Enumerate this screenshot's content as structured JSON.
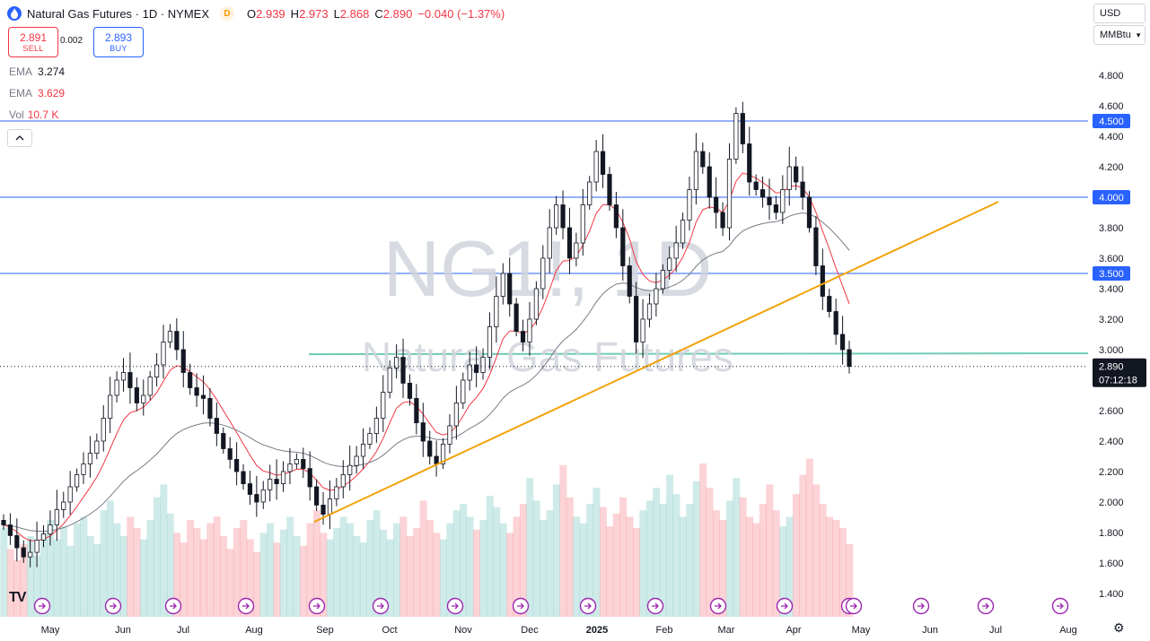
{
  "header": {
    "symbol_title": "Natural Gas Futures · 1D · NYMEX",
    "d_badge": "D",
    "open_key": "O",
    "open": "2.939",
    "high_key": "H",
    "high": "2.973",
    "low_key": "L",
    "low": "2.868",
    "close_key": "C",
    "close": "2.890",
    "change": "−0.040 (−1.37%)"
  },
  "trade": {
    "sell_price": "2.891",
    "sell_label": "SELL",
    "buy_price": "2.893",
    "buy_label": "BUY",
    "spread": "0.002"
  },
  "indicators": [
    {
      "name": "EMA",
      "value": "3.274",
      "color": "#787b86"
    },
    {
      "name": "EMA",
      "value": "3.629",
      "color": "#f23645"
    },
    {
      "name": "Vol",
      "value": "10.7 K",
      "color": "#f23645"
    }
  ],
  "currency_select": "USD",
  "unit_select": "MMBtu",
  "collapse_icon": "chevron-up-icon",
  "watermark": {
    "symbol": "NG1!, 1D",
    "name": "Natural Gas Futures"
  },
  "tv_logo": "TV",
  "chart_data": {
    "type": "candlestick",
    "y_ticks": [
      "4.800",
      "4.600",
      "4.400",
      "4.200",
      "4.000",
      "3.800",
      "3.600",
      "3.400",
      "3.200",
      "3.000",
      "2.800",
      "2.600",
      "2.400",
      "2.200",
      "2.000",
      "1.800",
      "1.600",
      "1.400"
    ],
    "ylim": [
      1.3,
      5.0
    ],
    "x_ticks": [
      "May",
      "Jun",
      "Jul",
      "Aug",
      "Sep",
      "Oct",
      "Nov",
      "Dec",
      "2025",
      "Feb",
      "Mar",
      "Apr",
      "May",
      "Jun",
      "Jul",
      "Aug"
    ],
    "horizontal_levels": [
      {
        "label": "4.500",
        "value": 4.5
      },
      {
        "label": "4.000",
        "value": 4.0
      },
      {
        "label": "3.500",
        "value": 3.5
      }
    ],
    "support_line_value": 2.97,
    "trend_line": {
      "from": [
        "Sep",
        1.87
      ],
      "to": [
        "Apr",
        3.97
      ]
    },
    "last_price_label": "2.890",
    "countdown": "07:12:18",
    "colors": {
      "up": "#26a69a",
      "down": "#f23645",
      "level": "#2962ff",
      "trend": "#f0a30a",
      "support": "#55c2a8",
      "ema_fast": "#f23645",
      "ema_slow": "#787b86",
      "candle": "#131722"
    },
    "closes": [
      1.85,
      1.78,
      1.7,
      1.64,
      1.67,
      1.75,
      1.79,
      1.85,
      1.95,
      2.0,
      2.1,
      2.18,
      2.25,
      2.32,
      2.4,
      2.55,
      2.7,
      2.8,
      2.85,
      2.75,
      2.65,
      2.7,
      2.82,
      2.9,
      3.05,
      3.12,
      3.0,
      2.85,
      2.75,
      2.7,
      2.68,
      2.55,
      2.45,
      2.35,
      2.28,
      2.2,
      2.12,
      2.05,
      2.0,
      2.08,
      2.15,
      2.12,
      2.2,
      2.25,
      2.28,
      2.22,
      2.1,
      1.98,
      1.92,
      2.02,
      2.1,
      2.18,
      2.24,
      2.3,
      2.38,
      2.45,
      2.55,
      2.72,
      2.88,
      2.95,
      2.78,
      2.68,
      2.52,
      2.4,
      2.3,
      2.25,
      2.38,
      2.5,
      2.65,
      2.8,
      2.9,
      2.85,
      2.95,
      3.15,
      3.35,
      3.5,
      3.3,
      3.12,
      3.05,
      3.2,
      3.4,
      3.6,
      3.8,
      3.95,
      3.8,
      3.6,
      3.7,
      3.95,
      4.1,
      4.3,
      4.15,
      3.95,
      3.8,
      3.55,
      3.35,
      3.05,
      3.2,
      3.3,
      3.4,
      3.52,
      3.6,
      3.7,
      3.85,
      4.05,
      4.3,
      4.2,
      4.0,
      3.9,
      3.8,
      4.25,
      4.55,
      4.35,
      4.1,
      4.05,
      4.0,
      3.95,
      3.9,
      4.05,
      4.2,
      4.1,
      4.0,
      3.8,
      3.55,
      3.35,
      3.25,
      3.1,
      3.0,
      2.89
    ],
    "volume": [
      0.55,
      0.42,
      0.35,
      0.45,
      0.5,
      0.38,
      0.52,
      0.6,
      0.48,
      0.56,
      0.44,
      0.58,
      0.62,
      0.5,
      0.45,
      0.66,
      0.72,
      0.58,
      0.5,
      0.62,
      0.55,
      0.48,
      0.6,
      0.74,
      0.82,
      0.64,
      0.52,
      0.46,
      0.6,
      0.55,
      0.48,
      0.58,
      0.62,
      0.5,
      0.42,
      0.55,
      0.6,
      0.48,
      0.4,
      0.52,
      0.58,
      0.46,
      0.54,
      0.62,
      0.5,
      0.44,
      0.58,
      0.66,
      0.52,
      0.48,
      0.55,
      0.62,
      0.58,
      0.5,
      0.46,
      0.6,
      0.66,
      0.54,
      0.48,
      0.58,
      0.62,
      0.5,
      0.55,
      0.72,
      0.6,
      0.52,
      0.48,
      0.58,
      0.66,
      0.7,
      0.62,
      0.54,
      0.6,
      0.75,
      0.68,
      0.58,
      0.52,
      0.62,
      0.7,
      0.86,
      0.72,
      0.6,
      0.66,
      0.82,
      0.94,
      0.74,
      0.62,
      0.58,
      0.7,
      0.8,
      0.68,
      0.56,
      0.64,
      0.74,
      0.62,
      0.55,
      0.66,
      0.72,
      0.8,
      0.7,
      0.88,
      0.76,
      0.62,
      0.7,
      0.84,
      0.95,
      0.8,
      0.66,
      0.6,
      0.72,
      0.86,
      0.74,
      0.62,
      0.58,
      0.7,
      0.82,
      0.66,
      0.56,
      0.62,
      0.76,
      0.88,
      0.98,
      0.82,
      0.7,
      0.62,
      0.6,
      0.55,
      0.45
    ]
  }
}
